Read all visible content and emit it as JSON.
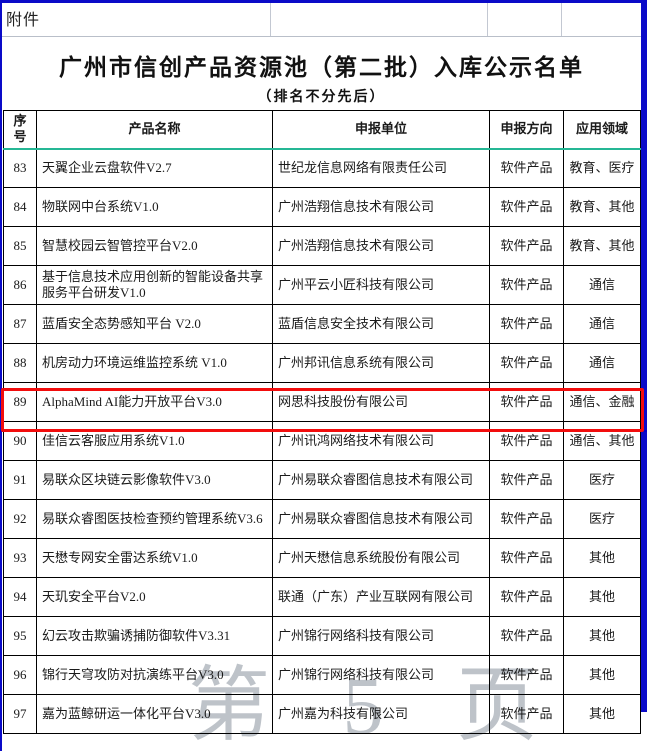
{
  "page": {
    "attachment_label": "附件",
    "title": "广州市信创产品资源池（第二批）入库公示名单",
    "subtitle": "（排名不分先后）",
    "watermark": "第 5 页"
  },
  "colors": {
    "frame_blue": "#0a0ac8",
    "page_break_dash_blue": "#0000cc",
    "highlight_red": "#f20d0d",
    "header_underline_teal": "#25b795"
  },
  "table": {
    "headers": [
      "序号",
      "产品名称",
      "申报单位",
      "申报方向",
      "应用领域"
    ],
    "rows": [
      {
        "no": "83",
        "name": "天翼企业云盘软件V2.7",
        "org": "世纪龙信息网络有限责任公司",
        "direction": "软件产品",
        "field": "教育、医疗"
      },
      {
        "no": "84",
        "name": "物联网中台系统V1.0",
        "org": "广州浩翔信息技术有限公司",
        "direction": "软件产品",
        "field": "教育、其他"
      },
      {
        "no": "85",
        "name": "智慧校园云智管控平台V2.0",
        "org": "广州浩翔信息技术有限公司",
        "direction": "软件产品",
        "field": "教育、其他"
      },
      {
        "no": "86",
        "name": "基于信息技术应用创新的智能设备共享服务平台研发V1.0",
        "org": "广州平云小匠科技有限公司",
        "direction": "软件产品",
        "field": "通信"
      },
      {
        "no": "87",
        "name": "蓝盾安全态势感知平台 V2.0",
        "org": "蓝盾信息安全技术有限公司",
        "direction": "软件产品",
        "field": "通信"
      },
      {
        "no": "88",
        "name": "机房动力环境运维监控系统 V1.0",
        "org": "广州邦讯信息系统有限公司",
        "direction": "软件产品",
        "field": "通信"
      },
      {
        "no": "89",
        "name": "AlphaMind AI能力开放平台V3.0",
        "org": "网思科技股份有限公司",
        "direction": "软件产品",
        "field": "通信、金融",
        "highlighted": true
      },
      {
        "no": "90",
        "name": "佳信云客服应用系统V1.0",
        "org": "广州讯鸿网络技术有限公司",
        "direction": "软件产品",
        "field": "通信、其他"
      },
      {
        "no": "91",
        "name": "易联众区块链云影像软件V3.0",
        "org": "广州易联众睿图信息技术有限公司",
        "direction": "软件产品",
        "field": "医疗"
      },
      {
        "no": "92",
        "name": "易联众睿图医技检查预约管理系统V3.6",
        "org": "广州易联众睿图信息技术有限公司",
        "direction": "软件产品",
        "field": "医疗"
      },
      {
        "no": "93",
        "name": "天懋专网安全雷达系统V1.0",
        "org": "广州天懋信息系统股份有限公司",
        "direction": "软件产品",
        "field": "其他"
      },
      {
        "no": "94",
        "name": "天玑安全平台V2.0",
        "org": "联通（广东）产业互联网有限公司",
        "direction": "软件产品",
        "field": "其他"
      },
      {
        "no": "95",
        "name": "幻云攻击欺骗诱捕防御软件V3.31",
        "org": "广州锦行网络科技有限公司",
        "direction": "软件产品",
        "field": "其他"
      },
      {
        "no": "96",
        "name": "锦行天穹攻防对抗演练平台V3.0",
        "org": "广州锦行网络科技有限公司",
        "direction": "软件产品",
        "field": "其他"
      },
      {
        "no": "97",
        "name": "嘉为蓝鲸研运一体化平台V3.0",
        "org": "广州嘉为科技有限公司",
        "direction": "软件产品",
        "field": "其他"
      }
    ]
  }
}
